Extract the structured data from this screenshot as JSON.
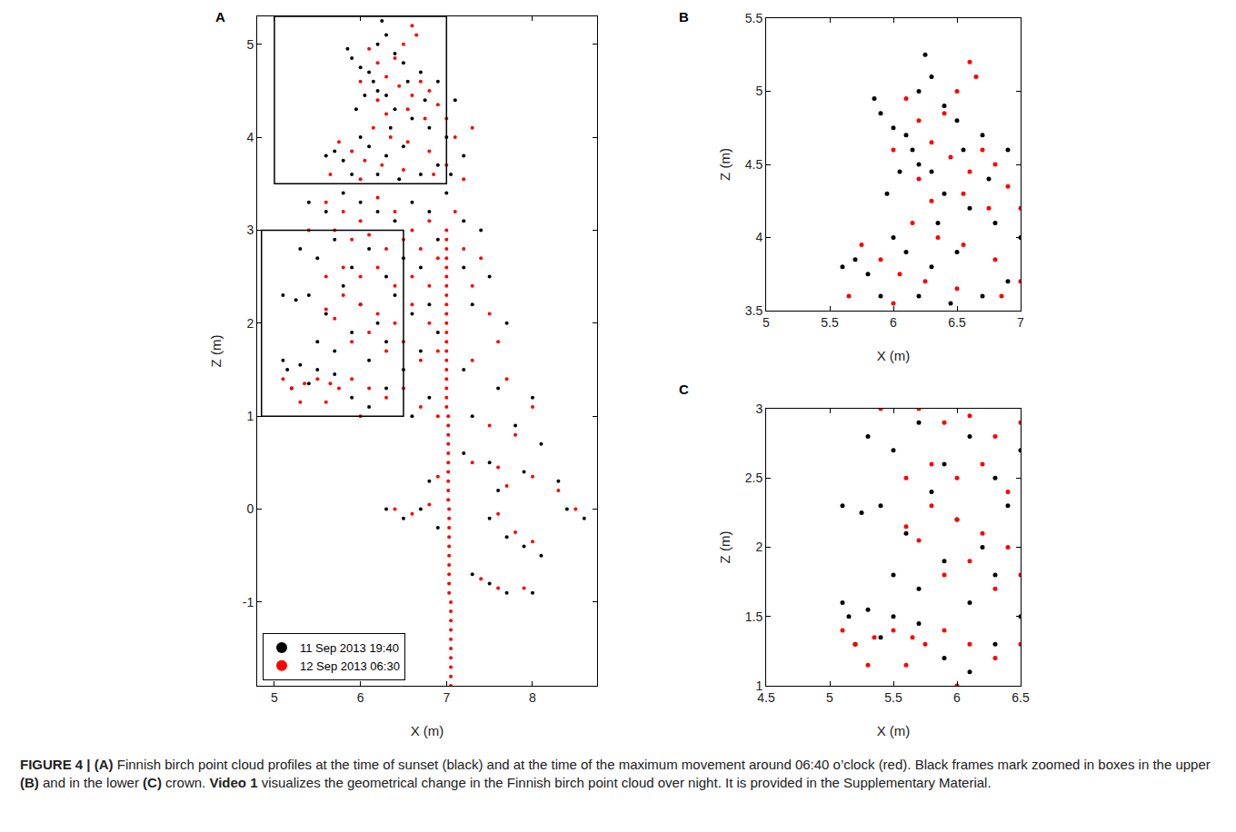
{
  "chart_data": [
    {
      "type": "scatter",
      "label": "A",
      "x_label": "X (m)",
      "y_label": "Z (m)",
      "xlim": [
        4.8,
        8.75
      ],
      "ylim": [
        -1.9,
        5.3
      ],
      "xticks": [
        5,
        6,
        7,
        8
      ],
      "yticks": [
        -1,
        0,
        1,
        2,
        3,
        4,
        5
      ],
      "grid": false,
      "legend": "lower left",
      "marker": "dot",
      "zoom_boxes": [
        {
          "x": [
            5,
            7
          ],
          "y": [
            3.5,
            5.3
          ]
        },
        {
          "x": [
            4.85,
            6.5
          ],
          "y": [
            1,
            3
          ]
        }
      ],
      "series": [
        {
          "name": "11 Sep 2013 19:40",
          "color": "#000000",
          "x": [
            6.25,
            6.3,
            6.2,
            5.85,
            5.9,
            6.0,
            6.1,
            6.15,
            6.2,
            6.3,
            6.4,
            6.5,
            6.55,
            6.7,
            6.9,
            7.1,
            6.4,
            6.6,
            6.8,
            7.0,
            7.2,
            5.7,
            5.6,
            5.8,
            6.0,
            6.1,
            6.3,
            6.5,
            6.7,
            6.9,
            5.9,
            6.2,
            6.45,
            5.95,
            6.05,
            6.75,
            7.05,
            6.35,
            5.4,
            5.6,
            5.8,
            6.0,
            6.2,
            6.4,
            6.6,
            6.8,
            7.0,
            7.2,
            7.4,
            5.3,
            5.5,
            5.7,
            5.9,
            6.1,
            6.3,
            6.5,
            6.7,
            6.9,
            7.2,
            7.5,
            5.1,
            5.25,
            5.4,
            5.6,
            5.8,
            6.0,
            6.2,
            6.4,
            6.6,
            6.8,
            7.3,
            7.7,
            5.5,
            5.7,
            5.9,
            6.1,
            6.3,
            6.5,
            6.7,
            6.9,
            7.2,
            7.6,
            8.0,
            5.1,
            5.15,
            5.3,
            5.5,
            5.7,
            5.2,
            5.4,
            5.9,
            6.1,
            6.3,
            6.6,
            6.8,
            7.3,
            7.8,
            8.1,
            7.2,
            7.5,
            7.9,
            8.3,
            8.6,
            8.4,
            6.3,
            6.5,
            6.7,
            6.9,
            7.5,
            7.7,
            7.9,
            8.1,
            7.3,
            7.5,
            7.7,
            8.0,
            6.8,
            7.6
          ],
          "values": [
            5.25,
            5.1,
            5.0,
            4.95,
            4.85,
            4.75,
            4.7,
            4.6,
            4.5,
            4.45,
            4.9,
            4.8,
            4.6,
            4.7,
            4.6,
            4.4,
            4.3,
            4.2,
            4.1,
            4.0,
            3.8,
            3.85,
            3.8,
            3.75,
            4.0,
            3.9,
            3.8,
            3.9,
            3.6,
            3.7,
            3.6,
            3.6,
            3.55,
            4.3,
            4.45,
            4.4,
            3.6,
            4.1,
            3.3,
            3.2,
            3.4,
            3.3,
            3.2,
            3.1,
            3.3,
            3.2,
            3.4,
            3.1,
            3.0,
            2.8,
            2.7,
            2.9,
            2.6,
            2.8,
            2.5,
            2.7,
            2.6,
            2.9,
            2.6,
            2.5,
            2.3,
            2.25,
            2.3,
            2.1,
            2.4,
            2.2,
            2.0,
            2.3,
            2.1,
            2.2,
            2.2,
            2.0,
            1.8,
            1.7,
            1.9,
            1.6,
            1.8,
            1.5,
            1.7,
            1.9,
            1.5,
            1.3,
            1.2,
            1.6,
            1.5,
            1.55,
            1.5,
            1.45,
            1.3,
            1.35,
            1.2,
            1.1,
            1.3,
            1.0,
            1.2,
            1.0,
            0.9,
            0.7,
            0.6,
            0.5,
            0.4,
            0.3,
            -0.1,
            0.0,
            0.0,
            -0.1,
            0.0,
            -0.2,
            -0.1,
            -0.3,
            -0.4,
            -0.5,
            -0.7,
            -0.8,
            -0.9,
            -0.9,
            0.3,
            0.2
          ]
        },
        {
          "name": "12 Sep 2013 06:30",
          "color": "#ff0000",
          "x": [
            6.6,
            6.65,
            6.5,
            6.4,
            6.2,
            6.3,
            6.45,
            6.6,
            6.7,
            6.8,
            6.9,
            6.55,
            6.75,
            7.0,
            7.1,
            7.3,
            6.3,
            6.15,
            6.35,
            6.55,
            6.8,
            7.0,
            5.75,
            5.9,
            6.05,
            6.25,
            6.5,
            6.85,
            5.65,
            6.0,
            6.2,
            6.0,
            7.2,
            6.1,
            5.6,
            5.8,
            6.0,
            6.2,
            6.4,
            6.6,
            6.8,
            7.1,
            5.4,
            5.7,
            5.9,
            6.1,
            6.3,
            6.5,
            6.7,
            6.9,
            7.2,
            7.4,
            5.6,
            5.8,
            6.0,
            6.2,
            6.4,
            6.6,
            6.8,
            7.3,
            5.6,
            5.7,
            5.8,
            6.0,
            6.2,
            6.4,
            6.6,
            6.8,
            7.5,
            7.6,
            5.9,
            6.1,
            6.3,
            6.5,
            6.7,
            6.9,
            7.3,
            7.7,
            8.0,
            5.1,
            5.2,
            5.35,
            5.5,
            5.65,
            5.75,
            5.9,
            6.1,
            6.3,
            6.5,
            6.7,
            5.3,
            5.6,
            6.0,
            6.9,
            7.5,
            7.8,
            7.3,
            7.6,
            8.0,
            8.3,
            8.5,
            6.4,
            6.6,
            6.8,
            7.6,
            7.8,
            8.0,
            7.4,
            7.6,
            7.9,
            6.9,
            7.7,
            7.0,
            7.0,
            7.0,
            7.0,
            7.0,
            7.0,
            7.0,
            7.0,
            7.0,
            7.0,
            7.0,
            7.0,
            7.0,
            7.0,
            7.0,
            7.0,
            7.0,
            7.0,
            7.0,
            7.0,
            7.02,
            7.02,
            7.02,
            7.02,
            7.02,
            7.02,
            7.02,
            7.02,
            7.02,
            7.02,
            7.03,
            7.03,
            7.03,
            7.03,
            7.03,
            7.03,
            7.03,
            7.03,
            7.03,
            7.03,
            7.05,
            7.05,
            7.05,
            7.05,
            7.05,
            7.05,
            7.05,
            7.05,
            7.05,
            7.05
          ],
          "values": [
            5.2,
            5.1,
            5.0,
            4.85,
            4.8,
            4.65,
            4.55,
            4.45,
            4.6,
            4.5,
            4.35,
            4.3,
            4.2,
            4.2,
            4.0,
            4.1,
            4.25,
            4.1,
            4.0,
            3.95,
            3.85,
            3.7,
            3.95,
            3.85,
            3.75,
            3.7,
            3.65,
            3.6,
            3.6,
            3.55,
            4.4,
            4.6,
            3.55,
            4.95,
            3.3,
            3.2,
            3.1,
            3.35,
            3.2,
            3.0,
            3.1,
            3.2,
            3.0,
            3.0,
            2.9,
            2.95,
            2.8,
            2.9,
            2.8,
            2.7,
            2.8,
            2.7,
            2.5,
            2.6,
            2.5,
            2.6,
            2.4,
            2.5,
            2.4,
            2.4,
            2.15,
            2.05,
            2.3,
            2.2,
            2.1,
            2.0,
            2.2,
            2.0,
            2.1,
            1.8,
            1.8,
            1.9,
            1.7,
            1.8,
            1.6,
            1.7,
            1.6,
            1.4,
            1.1,
            1.4,
            1.3,
            1.35,
            1.4,
            1.35,
            1.3,
            1.4,
            1.3,
            1.2,
            1.3,
            1.1,
            1.15,
            1.15,
            1.0,
            1.0,
            0.9,
            0.8,
            0.5,
            0.45,
            0.35,
            0.2,
            0.0,
            0.0,
            -0.05,
            0.05,
            -0.05,
            -0.25,
            -0.35,
            -0.75,
            -0.85,
            -0.85,
            0.35,
            0.25,
            3.0,
            2.9,
            2.8,
            2.7,
            2.6,
            2.5,
            2.4,
            2.3,
            2.2,
            2.1,
            2.0,
            1.9,
            1.8,
            1.7,
            1.6,
            1.5,
            1.4,
            1.3,
            1.2,
            1.1,
            1.0,
            0.9,
            0.8,
            0.7,
            0.6,
            0.5,
            0.4,
            0.3,
            0.2,
            0.1,
            0.0,
            -0.1,
            -0.2,
            -0.3,
            -0.4,
            -0.5,
            -0.6,
            -0.7,
            -0.8,
            -0.9,
            -1.0,
            -1.1,
            -1.2,
            -1.3,
            -1.4,
            -1.5,
            -1.6,
            -1.7,
            -1.8,
            -1.9
          ]
        }
      ]
    },
    {
      "type": "scatter",
      "label": "B",
      "zoom_of": "A",
      "x_label": "X (m)",
      "y_label": "Z (m)",
      "xlim": [
        5,
        7
      ],
      "ylim": [
        3.5,
        5.5
      ],
      "xticks": [
        5,
        5.5,
        6,
        6.5,
        7
      ],
      "yticks": [
        3.5,
        4,
        4.5,
        5,
        5.5
      ],
      "grid": false
    },
    {
      "type": "scatter",
      "label": "C",
      "zoom_of": "A",
      "x_label": "X (m)",
      "y_label": "Z (m)",
      "xlim": [
        4.5,
        6.5
      ],
      "ylim": [
        1,
        3
      ],
      "xticks": [
        4.5,
        5,
        5.5,
        6,
        6.5
      ],
      "yticks": [
        1,
        1.5,
        2,
        2.5,
        3
      ],
      "grid": false
    }
  ],
  "caption": [
    {
      "text": "FIGURE 4 | ",
      "weight": "bold"
    },
    {
      "text": "(A)",
      "weight": "bold"
    },
    {
      "text": " Finnish birch point cloud profiles at the time of sunset (black) and at the time of the maximum movement around 06:40 o’clock (red). Black frames mark zoomed in boxes in the upper ",
      "weight": "normal"
    },
    {
      "text": "(B)",
      "weight": "bold"
    },
    {
      "text": " and in the lower ",
      "weight": "normal"
    },
    {
      "text": "(C)",
      "weight": "bold"
    },
    {
      "text": " crown. ",
      "weight": "normal"
    },
    {
      "text": "Video 1",
      "weight": "bold"
    },
    {
      "text": " visualizes the geometrical change in the Finnish birch point cloud over night. It is provided in the Supplementary Material.",
      "weight": "normal"
    }
  ]
}
